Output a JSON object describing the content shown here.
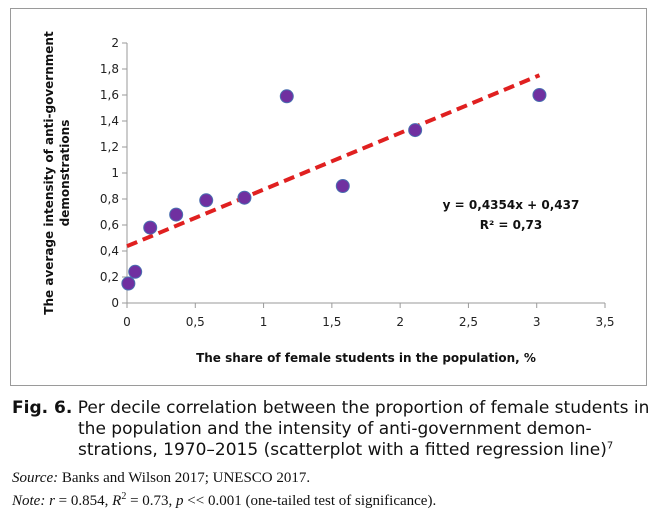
{
  "chart_data": {
    "type": "scatter",
    "xlabel": "The share of female students in the population, %",
    "ylabel_line1": "The average intensity of anti-government",
    "ylabel_line2": "demonstrations",
    "xlim": [
      0,
      3.5
    ],
    "ylim": [
      0,
      2
    ],
    "x_ticks": [
      "0",
      "0,5",
      "1",
      "1,5",
      "2",
      "2,5",
      "3",
      "3,5"
    ],
    "y_ticks": [
      "0",
      "0,2",
      "0,4",
      "0,6",
      "0,8",
      "1",
      "1,2",
      "1,4",
      "1,6",
      "1,8",
      "2"
    ],
    "grid": false,
    "points": [
      {
        "x": 0.01,
        "y": 0.15
      },
      {
        "x": 0.06,
        "y": 0.24
      },
      {
        "x": 0.17,
        "y": 0.58
      },
      {
        "x": 0.36,
        "y": 0.68
      },
      {
        "x": 0.58,
        "y": 0.79
      },
      {
        "x": 0.86,
        "y": 0.81
      },
      {
        "x": 1.17,
        "y": 1.59
      },
      {
        "x": 1.58,
        "y": 0.9
      },
      {
        "x": 2.11,
        "y": 1.33
      },
      {
        "x": 3.02,
        "y": 1.6
      }
    ],
    "trendline": {
      "slope": 0.4354,
      "intercept": 0.437,
      "x_range": [
        0,
        3.02
      ]
    },
    "annotation_equation": "y = 0,4354x + 0,437",
    "annotation_r2": "R² = 0,73",
    "colors": {
      "points": "#7030a0",
      "point_edge": "#4a6fb0",
      "trendline": "#e02020",
      "axis": "#9a9a9a"
    }
  },
  "caption": {
    "fig_label": "Fig. 6.",
    "text": "Per decile correlation between the proportion of female students in the population and the intensity of anti-government demon-strations, 1970–2015 (scatterplot with a fitted regression line)",
    "footnote_mark": "7"
  },
  "source": {
    "label": "Source:",
    "text": "Banks and Wilson 2017; UNESCO 2017."
  },
  "note": {
    "label": "Note:",
    "r": "r",
    "r_text": " = 0.854, ",
    "r2_R": "R",
    "r2_sup": "2",
    "r2_text": " = 0.73, ",
    "p": "p",
    "p_text": " << 0.001 (one-tailed test of significance)."
  }
}
